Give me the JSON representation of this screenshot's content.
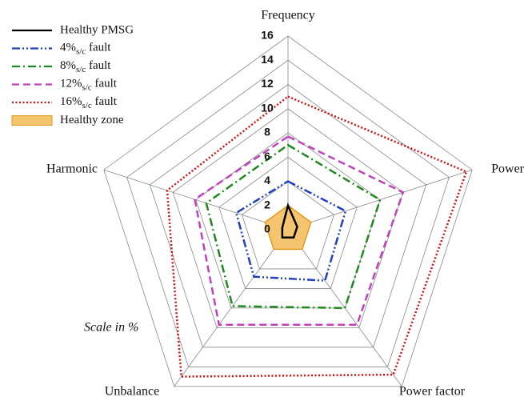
{
  "chart_data": {
    "type": "radar",
    "categories": [
      "Frequency",
      "Power",
      "Power factor",
      "Unbalance",
      "Harmonic"
    ],
    "ylim": [
      0,
      16
    ],
    "yticks": [
      0,
      2,
      4,
      6,
      8,
      10,
      12,
      14,
      16
    ],
    "grid": true,
    "annotation": "Scale in %",
    "series": [
      {
        "name": "Healthy PMSG",
        "color": "#000000",
        "linestyle": "solid",
        "values": [
          2,
          0.8,
          0.8,
          0.8,
          0.5
        ]
      },
      {
        "name": "4%s/c fault",
        "color": "#1f3fbf",
        "linestyle": "dashdotdot",
        "values": [
          4,
          5,
          5.2,
          4.8,
          4.5
        ]
      },
      {
        "name": "8%s/c fault",
        "color": "#1a8a1a",
        "linestyle": "dashdot",
        "values": [
          7,
          8,
          8,
          7.8,
          7.1
        ]
      },
      {
        "name": "12%s/c fault",
        "color": "#c040c0",
        "linestyle": "dashed",
        "values": [
          7.7,
          10,
          9.7,
          9.7,
          8.1
        ]
      },
      {
        "name": "16%s/c fault",
        "color": "#d01010",
        "linestyle": "dotted",
        "values": [
          11,
          15.5,
          14.8,
          15,
          10.5
        ]
      },
      {
        "name": "Healthy zone",
        "color": "#f5c46e",
        "linestyle": "fill",
        "values": [
          2,
          2,
          2,
          2,
          2
        ]
      }
    ]
  }
}
